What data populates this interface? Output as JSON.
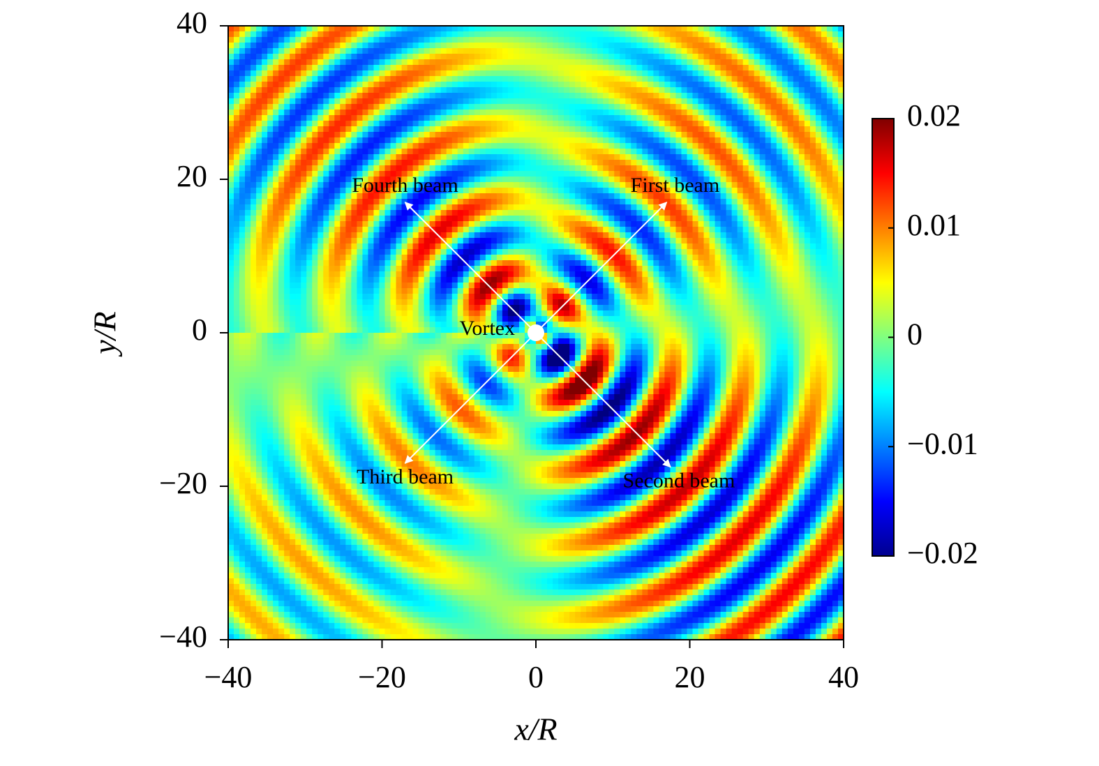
{
  "chart_data": {
    "type": "heatmap",
    "xlabel": "x/R",
    "ylabel": "y/R",
    "xlim": [
      -40,
      40
    ],
    "ylim": [
      -40,
      40
    ],
    "xticks": [
      {
        "value": -40,
        "label": "−40"
      },
      {
        "value": -20,
        "label": "−20"
      },
      0,
      20,
      40
    ],
    "yticks": [
      {
        "value": -40,
        "label": "−40"
      },
      {
        "value": -20,
        "label": "−20"
      },
      0,
      20,
      40
    ],
    "colormap": "jet",
    "clim": [
      -0.02,
      0.02
    ],
    "cticks": [
      {
        "value": -0.02,
        "label": "−0.02"
      },
      {
        "value": -0.01,
        "label": "−0.01"
      },
      0,
      0.01,
      0.02
    ],
    "annotations": [
      {
        "text": "First beam",
        "x": 17,
        "y": 17
      },
      {
        "text": "Second beam",
        "x": 17.5,
        "y": -17.5
      },
      {
        "text": "Third beam",
        "x": -17,
        "y": -17
      },
      {
        "text": "Fourth beam",
        "x": -17,
        "y": 17
      },
      {
        "text": "Vortex",
        "x": 0,
        "y": 0
      }
    ]
  }
}
